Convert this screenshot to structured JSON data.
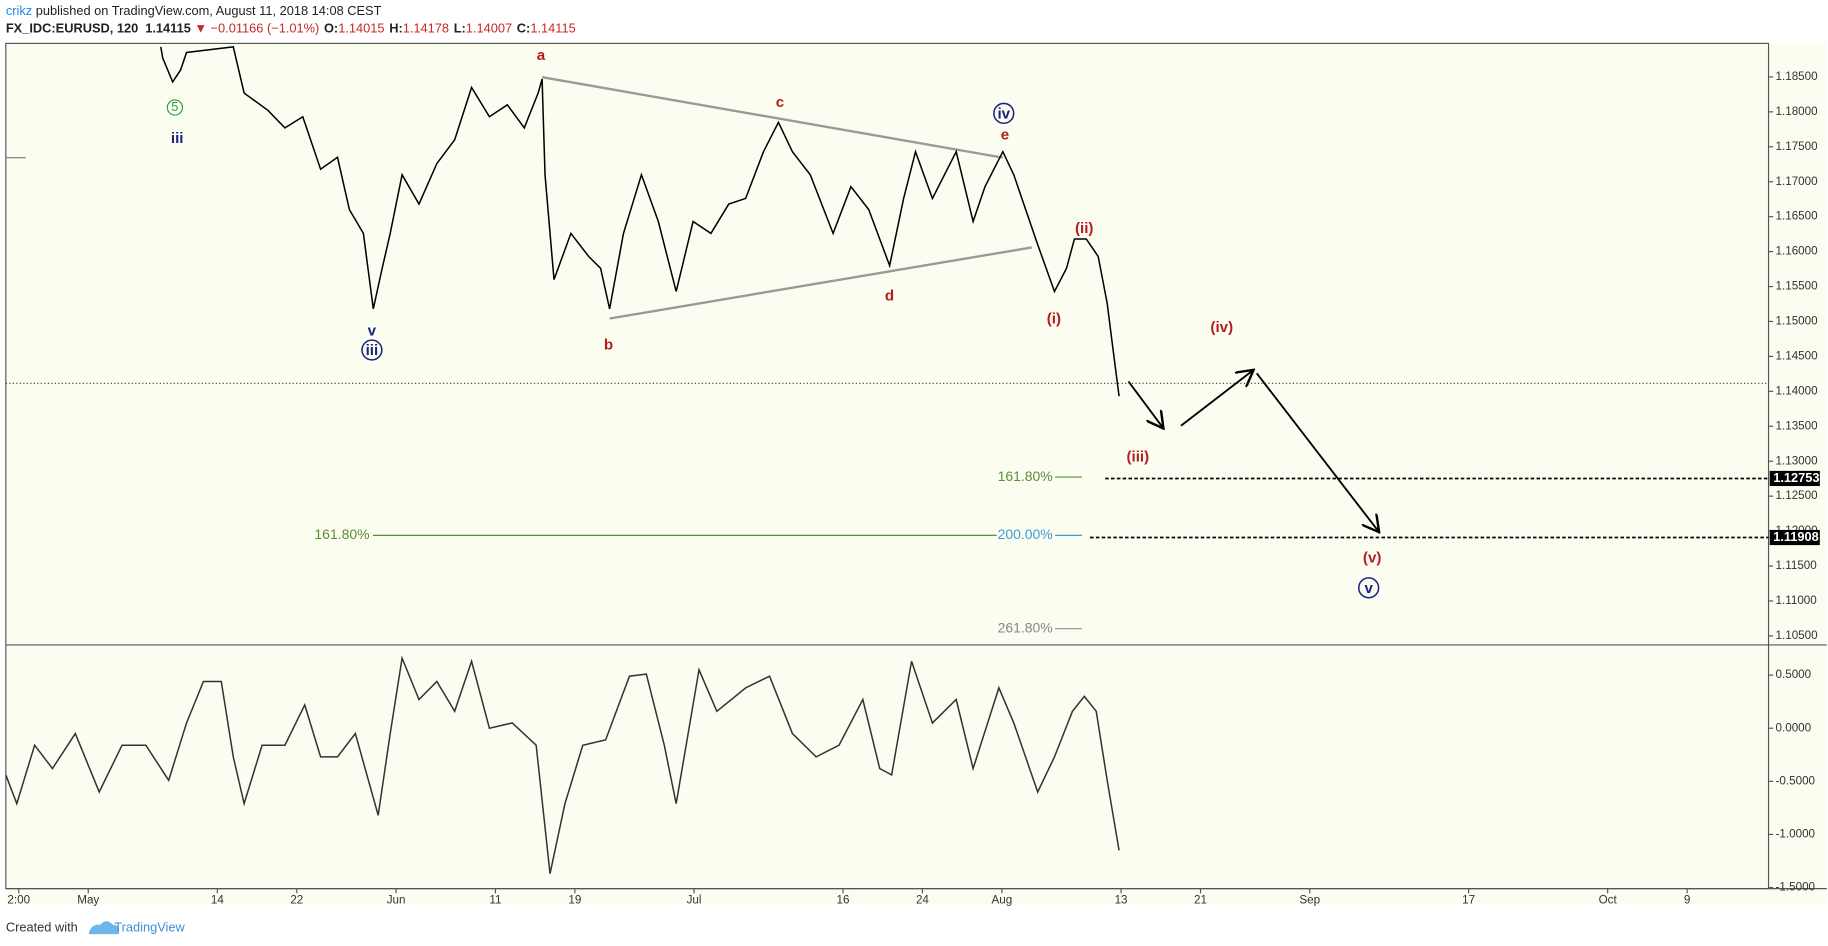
{
  "header": {
    "author": "crikz",
    "published": " published on TradingView.com, August 11, 2018 14:08 CEST",
    "symbol": "FX_IDC:EURUSD, 120",
    "last": "1.14115",
    "arrow": "▼",
    "change": "−0.01166 (−1.01%)",
    "ohlc": [
      {
        "label": "O:",
        "value": "1.14015"
      },
      {
        "label": "H:",
        "value": "1.14178"
      },
      {
        "label": "L:",
        "value": "1.14007"
      },
      {
        "label": "C:",
        "value": "1.14115"
      }
    ]
  },
  "chart_data": [
    {
      "type": "line",
      "color": "#000000",
      "x": [
        128.3,
        128.5,
        129.5,
        130.3,
        130.9,
        135.6,
        136.7,
        139.1,
        140.8,
        142.6,
        144.4,
        146.1,
        147.3,
        148.7,
        149.7,
        150.6,
        151.4,
        152.6,
        154.3,
        156.1,
        157.9,
        159.6,
        161.4,
        163.2,
        164.9,
        166.3,
        166.7,
        167.0,
        167.9,
        169.6,
        171.4,
        172.6,
        173.5,
        174.9,
        176.7,
        178.4,
        180.2,
        181.9,
        183.7,
        185.5,
        187.2,
        189.0,
        190.5,
        191.9,
        193.7,
        196.0,
        197.8,
        199.6,
        201.7,
        203.1,
        204.3,
        206.0,
        208.4,
        210.1,
        211.3,
        213.1,
        214.2,
        215.4,
        216.6,
        218.3,
        219.5,
        220.3,
        221.5,
        222.7,
        223.6,
        224.2,
        224.8
      ],
      "values": [
        1.1893,
        1.1877,
        1.1843,
        1.186,
        1.1885,
        1.1893,
        1.1827,
        1.1802,
        1.1777,
        1.1793,
        1.1718,
        1.1735,
        1.166,
        1.1626,
        1.1518,
        1.1576,
        1.1626,
        1.171,
        1.1668,
        1.1726,
        1.176,
        1.1835,
        1.1793,
        1.181,
        1.1777,
        1.1827,
        1.1847,
        1.171,
        1.156,
        1.1626,
        1.1593,
        1.1576,
        1.1518,
        1.1626,
        1.171,
        1.1643,
        1.1543,
        1.1643,
        1.1626,
        1.1668,
        1.1676,
        1.1743,
        1.1785,
        1.1743,
        1.171,
        1.1626,
        1.1693,
        1.166,
        1.158,
        1.1676,
        1.1743,
        1.1676,
        1.1743,
        1.1643,
        1.1693,
        1.1743,
        1.171,
        1.166,
        1.161,
        1.1543,
        1.1576,
        1.1618,
        1.1618,
        1.1593,
        1.1526,
        1.1459,
        1.1393
      ],
      "xlim": [
        112.7,
        290.2
      ],
      "ylim": [
        1.1037,
        1.1898
      ],
      "yticks": [
        {
          "value": 1.185,
          "label": "1.18500"
        },
        {
          "value": 1.18,
          "label": "1.18000"
        },
        {
          "value": 1.175,
          "label": "1.17500"
        },
        {
          "value": 1.17,
          "label": "1.17000"
        },
        {
          "value": 1.165,
          "label": "1.16500"
        },
        {
          "value": 1.16,
          "label": "1.16000"
        },
        {
          "value": 1.155,
          "label": "1.15500"
        },
        {
          "value": 1.15,
          "label": "1.15000"
        },
        {
          "value": 1.145,
          "label": "1.14500"
        },
        {
          "value": 1.14,
          "label": "1.14000"
        },
        {
          "value": 1.135,
          "label": "1.13500"
        },
        {
          "value": 1.13,
          "label": "1.13000"
        },
        {
          "value": 1.125,
          "label": "1.12500"
        },
        {
          "value": 1.12,
          "label": "1.12000"
        },
        {
          "value": 1.115,
          "label": "1.11500"
        },
        {
          "value": 1.11,
          "label": "1.11000"
        },
        {
          "value": 1.105,
          "label": "1.10500"
        }
      ],
      "last_price": 1.14115,
      "levels": [
        {
          "value": 1.12753,
          "label": "1.12753"
        },
        {
          "value": 1.11908,
          "label": "1.11908"
        }
      ],
      "annotations": [
        "5",
        "iii",
        "v",
        "iii",
        "a",
        "b",
        "c",
        "d",
        "iv",
        "e",
        "(ii)",
        "(i)",
        "(iv)",
        "(iii)",
        "(v)",
        "v"
      ],
      "fib_labels": [
        "161.80%",
        "161.80%",
        "200.00%",
        "261.80%"
      ]
    },
    {
      "type": "line",
      "color": "#333333",
      "x": [
        112.7,
        113.8,
        115.6,
        117.4,
        119.7,
        122.1,
        124.4,
        126.8,
        129.1,
        130.9,
        132.6,
        134.4,
        135.6,
        136.7,
        138.5,
        140.8,
        142.8,
        144.4,
        146.1,
        147.9,
        150.2,
        151.4,
        152.6,
        154.3,
        156.1,
        157.9,
        159.6,
        161.4,
        163.7,
        166.1,
        167.5,
        169.0,
        170.8,
        173.1,
        175.5,
        177.2,
        179.0,
        180.2,
        182.5,
        184.3,
        187.2,
        189.6,
        191.9,
        194.3,
        196.6,
        199.0,
        200.7,
        201.9,
        203.9,
        206.0,
        208.4,
        210.1,
        212.7,
        214.2,
        216.6,
        218.3,
        220.1,
        221.3,
        222.5,
        223.6,
        224.8
      ],
      "values": [
        -0.44,
        -0.71,
        -0.16,
        -0.38,
        -0.05,
        -0.6,
        -0.16,
        -0.16,
        -0.49,
        0.05,
        0.44,
        0.44,
        -0.27,
        -0.71,
        -0.16,
        -0.16,
        0.22,
        -0.27,
        -0.27,
        -0.05,
        -0.82,
        -0.05,
        0.66,
        0.27,
        0.44,
        0.16,
        0.63,
        0,
        0.05,
        -0.16,
        -1.37,
        -0.71,
        -0.16,
        -0.11,
        0.49,
        0.51,
        -0.16,
        -0.71,
        0.55,
        0.16,
        0.38,
        0.49,
        -0.05,
        -0.27,
        -0.16,
        0.27,
        -0.38,
        -0.44,
        0.63,
        0.05,
        0.27,
        -0.38,
        0.38,
        0.05,
        -0.6,
        -0.27,
        0.16,
        0.3,
        0.16,
        -0.49,
        -1.15
      ],
      "xlim": [
        112.7,
        290.2
      ],
      "ylim": [
        -1.51,
        0.784
      ],
      "yticks": [
        {
          "value": 0.5,
          "label": "0.5000"
        },
        {
          "value": 0,
          "label": "0.0000"
        },
        {
          "value": -0.5,
          "label": "-0.5000"
        },
        {
          "value": -1,
          "label": "-1.0000"
        },
        {
          "value": -1.5,
          "label": "-1.5000"
        }
      ],
      "xticks": [
        {
          "value": 114,
          "label": "2:00"
        },
        {
          "value": 121,
          "label": "May"
        },
        {
          "value": 134,
          "label": "14"
        },
        {
          "value": 142,
          "label": "22"
        },
        {
          "value": 152,
          "label": "Jun"
        },
        {
          "value": 162,
          "label": "11"
        },
        {
          "value": 170,
          "label": "19"
        },
        {
          "value": 182,
          "label": "Jul"
        },
        {
          "value": 197,
          "label": "16"
        },
        {
          "value": 205,
          "label": "24"
        },
        {
          "value": 213,
          "label": "Aug"
        },
        {
          "value": 225,
          "label": "13"
        },
        {
          "value": 233,
          "label": "21"
        },
        {
          "value": 244,
          "label": "Sep"
        },
        {
          "value": 260,
          "label": "17"
        },
        {
          "value": 274,
          "label": "Oct"
        },
        {
          "value": 282,
          "label": "9"
        }
      ]
    }
  ],
  "footer": {
    "created": "Created with",
    "brand": "TradingView"
  }
}
